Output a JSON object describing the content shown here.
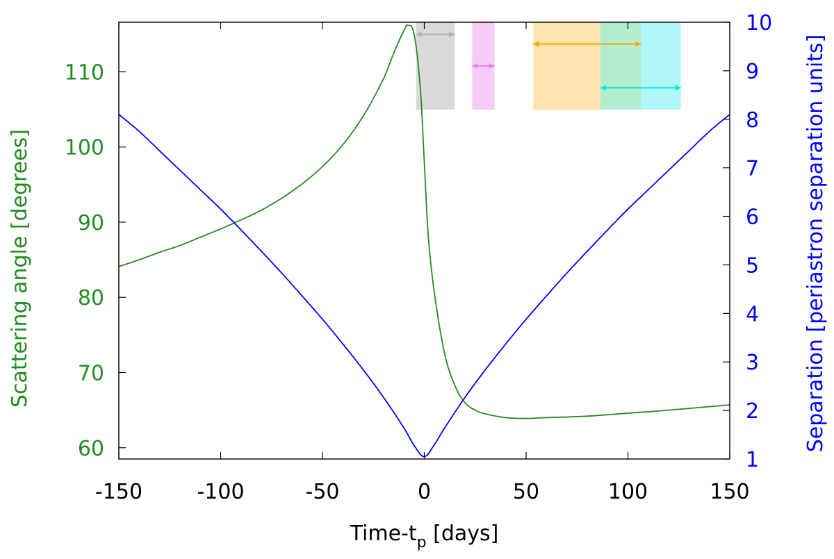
{
  "chart_data": {
    "type": "line",
    "title": "",
    "x_axis": {
      "label": "Time-t",
      "label_sub": "p",
      "label_suffix": " [days]",
      "range": [
        -150,
        150
      ],
      "ticks": [
        -150,
        -100,
        -50,
        0,
        50,
        100,
        150
      ],
      "tick_labels": [
        "-150",
        "-100",
        "-50",
        "0",
        "50",
        "100",
        "150"
      ]
    },
    "y_left": {
      "label": "Scattering angle [degrees]",
      "range": [
        58.5,
        116.6
      ],
      "ticks": [
        60,
        70,
        80,
        90,
        100,
        110
      ],
      "tick_labels": [
        "60",
        "70",
        "80",
        "90",
        "100",
        "110"
      ],
      "color": "#228b22"
    },
    "y_right": {
      "label": "Separation [periastron separation units]",
      "range": [
        1,
        10
      ],
      "ticks": [
        1,
        2,
        3,
        4,
        5,
        6,
        7,
        8,
        9,
        10
      ],
      "tick_labels": [
        "1",
        "2",
        "3",
        "4",
        "5",
        "6",
        "7",
        "8",
        "9",
        "10"
      ],
      "color": "#0000ff"
    },
    "grid": false,
    "series": [
      {
        "axis": "left",
        "color": "#228b22",
        "x": [
          -150,
          -140,
          -130,
          -120,
          -110,
          -100,
          -90,
          -80,
          -70,
          -60,
          -50,
          -40,
          -30,
          -20,
          -15,
          -10,
          -8,
          -5,
          -2,
          0,
          2,
          5,
          10,
          15,
          20,
          25,
          30,
          40,
          50,
          60,
          80,
          100,
          120,
          150
        ],
        "y": [
          84.1,
          85.0,
          86.0,
          86.9,
          88.0,
          89.1,
          90.3,
          91.6,
          93.2,
          95.1,
          97.4,
          100.3,
          104.1,
          109.1,
          112.5,
          115.5,
          116.2,
          115.0,
          108.0,
          98.0,
          88.0,
          80.5,
          72.5,
          68.3,
          66.0,
          65.0,
          64.5,
          64.0,
          63.9,
          64.0,
          64.2,
          64.6,
          65.0,
          65.7
        ]
      },
      {
        "axis": "right",
        "color": "#0000ff",
        "x": [
          -150,
          -140,
          -130,
          -120,
          -110,
          -100,
          -90,
          -80,
          -70,
          -60,
          -50,
          -40,
          -30,
          -20,
          -10,
          -5,
          0,
          5,
          10,
          20,
          30,
          40,
          50,
          60,
          70,
          80,
          90,
          100,
          110,
          120,
          130,
          140,
          150
        ],
        "y": [
          8.1,
          7.75,
          7.35,
          6.95,
          6.55,
          6.15,
          5.72,
          5.28,
          4.83,
          4.36,
          3.88,
          3.37,
          2.84,
          2.27,
          1.64,
          1.28,
          1.05,
          1.3,
          1.64,
          2.27,
          2.84,
          3.37,
          3.88,
          4.36,
          4.83,
          5.28,
          5.72,
          6.15,
          6.55,
          6.95,
          7.35,
          7.75,
          8.1
        ]
      }
    ],
    "bands": [
      {
        "x0": -4,
        "x1": 15,
        "color": "#d9d9d9"
      },
      {
        "x0": 23.5,
        "x1": 34.5,
        "color": "#f6ccf6"
      },
      {
        "x0": 53.5,
        "x1": 86.5,
        "color": "#fde3ae"
      },
      {
        "x0": 86.5,
        "x1": 106.5,
        "color": "#b1edce"
      },
      {
        "x0": 106.5,
        "x1": 126,
        "color": "#b0f8f8"
      }
    ],
    "arrows": [
      {
        "x0": -4,
        "x1": 15,
        "level": 9.75,
        "color": "#b3b3b3"
      },
      {
        "x0": 23.5,
        "x1": 34.5,
        "level": 9.1,
        "color": "#ee82ee"
      },
      {
        "x0": 53.5,
        "x1": 106.5,
        "level": 9.55,
        "color": "#ffa500"
      },
      {
        "x0": 86.5,
        "x1": 126,
        "level": 8.65,
        "color": "#00e5e5"
      }
    ],
    "band_level_range": [
      8.2,
      10
    ]
  }
}
